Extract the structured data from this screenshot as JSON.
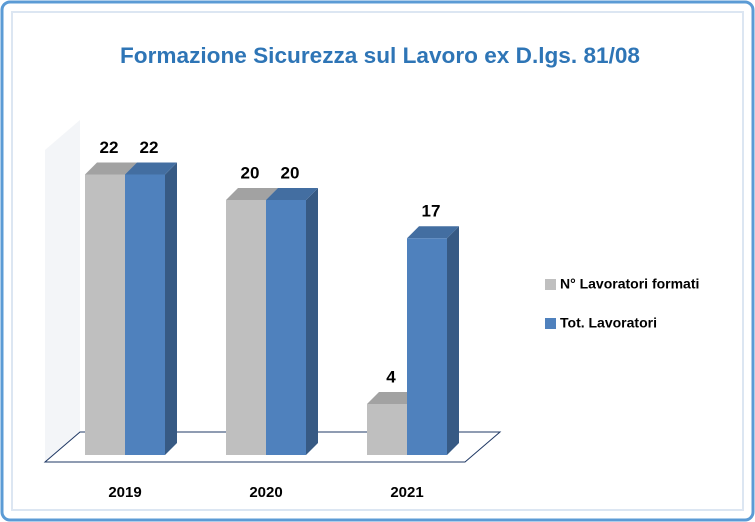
{
  "chart_data": {
    "type": "bar3d",
    "title": "Formazione Sicurezza sul Lavoro ex D.lgs. 81/08",
    "categories": [
      "2019",
      "2020",
      "2021"
    ],
    "series": [
      {
        "name": "N° Lavoratori formati",
        "color": "#bfbfbf",
        "values": [
          22,
          20,
          4
        ]
      },
      {
        "name": "Tot. Lavoratori",
        "color": "#4f81bd",
        "values": [
          22,
          20,
          17
        ]
      }
    ],
    "legend": "right"
  }
}
